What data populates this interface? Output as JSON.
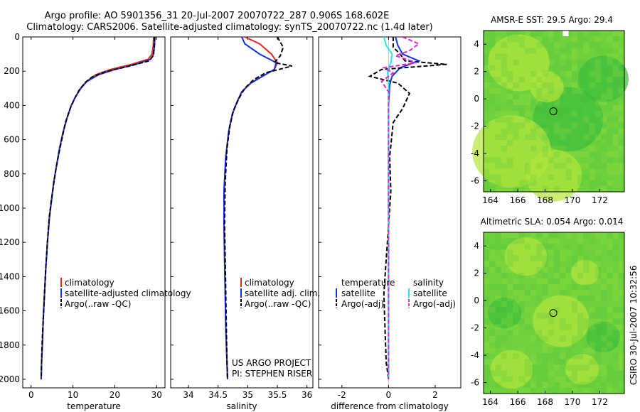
{
  "header": {
    "title_line1": "Argo profile: AO 5901356_31 20-Jul-2007 20070722_287 0.906S 168.602E",
    "title_line2": "Climatology: CARS2006. Satellite-adjusted climatology: synTS_20070722.nc (1.4d later)"
  },
  "side_label": "CSIRO 30-Jul-2007 10:32:56",
  "colors": {
    "climatology": "#e8281e",
    "satellite": "#1432e6",
    "argo": "#000000",
    "salinity_sat": "#28e6e6",
    "salinity_argo": "#e028d0",
    "map_bg": "#6fd23c",
    "map_light": "#b4e63c",
    "map_dark": "#3cbe3c"
  },
  "chart_data": [
    {
      "type": "line",
      "id": "temperature",
      "xlabel": "temperature",
      "ylabel": "",
      "xlim": [
        -2,
        32
      ],
      "ylim": [
        2050,
        0
      ],
      "xticks": [
        "0",
        "10",
        "20",
        "30"
      ],
      "xtick_values": [
        0,
        10,
        20,
        30
      ],
      "yticks": [
        "0",
        "200",
        "400",
        "600",
        "800",
        "1000",
        "1200",
        "1400",
        "1600",
        "1800",
        "2000"
      ],
      "ytick_values": [
        0,
        200,
        400,
        600,
        800,
        1000,
        1200,
        1400,
        1600,
        1800,
        2000
      ],
      "legend": [
        "climatology",
        "satellite-adjusted climatology",
        "Argo(..raw -QC)"
      ],
      "series": [
        {
          "name": "climatology",
          "color_key": "climatology",
          "dash": false,
          "points": [
            [
              29.3,
              0
            ],
            [
              29.2,
              50
            ],
            [
              28.9,
              100
            ],
            [
              28,
              130
            ],
            [
              24,
              160
            ],
            [
              19,
              190
            ],
            [
              15.5,
              220
            ],
            [
              13.2,
              260
            ],
            [
              11.8,
              300
            ],
            [
              10.6,
              350
            ],
            [
              9.6,
              400
            ],
            [
              8.5,
              480
            ],
            [
              7.6,
              560
            ],
            [
              6.8,
              650
            ],
            [
              6.1,
              750
            ],
            [
              5.4,
              850
            ],
            [
              4.9,
              950
            ],
            [
              4.4,
              1050
            ],
            [
              3.9,
              1200
            ],
            [
              3.5,
              1350
            ],
            [
              3.2,
              1500
            ],
            [
              2.9,
              1650
            ],
            [
              2.7,
              1800
            ],
            [
              2.5,
              1900
            ],
            [
              2.4,
              2000
            ]
          ]
        },
        {
          "name": "satellite-adjusted climatology",
          "color_key": "satellite",
          "dash": false,
          "points": [
            [
              29.6,
              0
            ],
            [
              29.5,
              50
            ],
            [
              29.3,
              100
            ],
            [
              28.6,
              130
            ],
            [
              25,
              160
            ],
            [
              20,
              190
            ],
            [
              16.2,
              220
            ],
            [
              13.3,
              260
            ],
            [
              11.9,
              300
            ],
            [
              10.6,
              350
            ],
            [
              9.6,
              400
            ],
            [
              8.5,
              480
            ],
            [
              7.6,
              560
            ],
            [
              6.8,
              650
            ],
            [
              6.1,
              750
            ],
            [
              5.4,
              850
            ],
            [
              4.9,
              950
            ],
            [
              4.4,
              1050
            ],
            [
              3.9,
              1200
            ],
            [
              3.5,
              1350
            ],
            [
              3.2,
              1500
            ],
            [
              2.9,
              1650
            ],
            [
              2.7,
              1800
            ],
            [
              2.5,
              1900
            ],
            [
              2.4,
              2000
            ]
          ]
        },
        {
          "name": "Argo(..raw -QC)",
          "color_key": "argo",
          "dash": true,
          "points": [
            [
              29.5,
              0
            ],
            [
              29.4,
              60
            ],
            [
              29.2,
              110
            ],
            [
              28.2,
              140
            ],
            [
              23.5,
              170
            ],
            [
              17.5,
              205
            ],
            [
              14.5,
              235
            ],
            [
              13,
              265
            ],
            [
              11.5,
              310
            ],
            [
              10.4,
              360
            ],
            [
              9.3,
              420
            ],
            [
              8.2,
              500
            ],
            [
              7.5,
              580
            ],
            [
              6.8,
              660
            ],
            [
              6,
              760
            ],
            [
              5.4,
              860
            ],
            [
              4.8,
              960
            ],
            [
              4.3,
              1060
            ],
            [
              3.9,
              1200
            ],
            [
              3.5,
              1350
            ],
            [
              3.2,
              1500
            ],
            [
              2.9,
              1650
            ],
            [
              2.6,
              1800
            ],
            [
              2.5,
              1900
            ],
            [
              2.4,
              2000
            ]
          ]
        }
      ]
    },
    {
      "type": "line",
      "id": "salinity",
      "xlabel": "salinity",
      "xlim": [
        33.7,
        36.1
      ],
      "ylim": [
        2050,
        0
      ],
      "xticks": [
        "34",
        "34.5",
        "35",
        "35.5",
        "36"
      ],
      "xtick_values": [
        34,
        34.5,
        35,
        35.5,
        36
      ],
      "legend": [
        "climatology",
        "satellite adj. clim.",
        "Argo(..raw -QC)"
      ],
      "annotation": [
        "US ARGO PROJECT",
        "PI: STEPHEN RISER"
      ],
      "series": [
        {
          "name": "climatology",
          "color_key": "climatology",
          "dash": false,
          "points": [
            [
              34.95,
              0
            ],
            [
              35.2,
              40
            ],
            [
              35.4,
              100
            ],
            [
              35.5,
              150
            ],
            [
              35.45,
              190
            ],
            [
              35.25,
              230
            ],
            [
              35.05,
              270
            ],
            [
              34.9,
              320
            ],
            [
              34.82,
              380
            ],
            [
              34.74,
              450
            ],
            [
              34.68,
              550
            ],
            [
              34.63,
              700
            ],
            [
              34.6,
              900
            ],
            [
              34.6,
              1100
            ],
            [
              34.61,
              1300
            ],
            [
              34.62,
              1500
            ],
            [
              34.63,
              1700
            ],
            [
              34.65,
              1900
            ],
            [
              34.66,
              2000
            ]
          ]
        },
        {
          "name": "satellite adj. clim.",
          "color_key": "satellite",
          "dash": false,
          "points": [
            [
              34.9,
              0
            ],
            [
              34.95,
              40
            ],
            [
              35.2,
              100
            ],
            [
              35.48,
              150
            ],
            [
              35.45,
              190
            ],
            [
              35.25,
              230
            ],
            [
              35.05,
              270
            ],
            [
              34.9,
              320
            ],
            [
              34.82,
              380
            ],
            [
              34.74,
              450
            ],
            [
              34.68,
              550
            ],
            [
              34.63,
              700
            ],
            [
              34.6,
              900
            ],
            [
              34.6,
              1100
            ],
            [
              34.61,
              1300
            ],
            [
              34.62,
              1500
            ],
            [
              34.63,
              1700
            ],
            [
              34.65,
              1900
            ],
            [
              34.66,
              2000
            ]
          ]
        },
        {
          "name": "Argo(..raw -QC)",
          "color_key": "argo",
          "dash": true,
          "points": [
            [
              35.5,
              0
            ],
            [
              35.6,
              60
            ],
            [
              35.55,
              110
            ],
            [
              35.45,
              150
            ],
            [
              35.75,
              170
            ],
            [
              35.3,
              210
            ],
            [
              35.1,
              250
            ],
            [
              34.95,
              300
            ],
            [
              34.85,
              360
            ],
            [
              34.76,
              430
            ],
            [
              34.7,
              520
            ],
            [
              34.65,
              650
            ],
            [
              34.62,
              850
            ],
            [
              34.61,
              1100
            ],
            [
              34.62,
              1300
            ],
            [
              34.63,
              1500
            ],
            [
              34.64,
              1700
            ],
            [
              34.65,
              1900
            ],
            [
              34.66,
              2000
            ]
          ]
        }
      ]
    },
    {
      "type": "line",
      "id": "difference",
      "xlabel": "difference from climatology",
      "xlim": [
        -3,
        3.1
      ],
      "ylim": [
        2050,
        0
      ],
      "xticks": [
        "-2",
        "0",
        "2"
      ],
      "xtick_values": [
        -2,
        0,
        2
      ],
      "legend_temperature": {
        "heading": "temperature",
        "items": [
          "satellite",
          "Argo(-adj)"
        ]
      },
      "legend_salinity": {
        "heading": "salinity",
        "items": [
          "satellite",
          "Argo(-adj)"
        ]
      },
      "series": [
        {
          "name": "temperature satellite",
          "color_key": "satellite",
          "dash": false,
          "points": [
            [
              0.3,
              0
            ],
            [
              0.4,
              50
            ],
            [
              0.6,
              100
            ],
            [
              1.3,
              140
            ],
            [
              0.5,
              180
            ],
            [
              0.15,
              230
            ],
            [
              0.05,
              280
            ],
            [
              0,
              400
            ],
            [
              0,
              800
            ],
            [
              0,
              1200
            ],
            [
              0,
              1600
            ],
            [
              0,
              2000
            ]
          ]
        },
        {
          "name": "temperature Argo(-adj)",
          "color_key": "argo",
          "dash": true,
          "points": [
            [
              0.2,
              0
            ],
            [
              0.2,
              60
            ],
            [
              0.5,
              100
            ],
            [
              0.7,
              140
            ],
            [
              2.5,
              160
            ],
            [
              -0.3,
              190
            ],
            [
              -0.8,
              230
            ],
            [
              0.4,
              270
            ],
            [
              0.9,
              330
            ],
            [
              0.6,
              420
            ],
            [
              0.2,
              500
            ],
            [
              0.05,
              700
            ],
            [
              0.1,
              900
            ],
            [
              0,
              1100
            ],
            [
              -0.1,
              1300
            ],
            [
              -0.2,
              1500
            ],
            [
              -0.15,
              1700
            ],
            [
              -0.1,
              1900
            ],
            [
              0,
              2000
            ]
          ]
        },
        {
          "name": "salinity satellite",
          "color_key": "salinity_sat",
          "dash": false,
          "points": [
            [
              -0.2,
              0
            ],
            [
              -0.1,
              50
            ],
            [
              0.15,
              100
            ],
            [
              0.1,
              150
            ],
            [
              -0.05,
              200
            ],
            [
              0,
              260
            ],
            [
              0,
              400
            ],
            [
              0,
              800
            ],
            [
              0,
              1200
            ],
            [
              0,
              1600
            ],
            [
              0,
              2000
            ]
          ]
        },
        {
          "name": "salinity Argo(-adj)",
          "color_key": "salinity_argo",
          "dash": true,
          "points": [
            [
              0.6,
              0
            ],
            [
              1.3,
              40
            ],
            [
              0.9,
              80
            ],
            [
              0.3,
              110
            ],
            [
              1.2,
              150
            ],
            [
              -0.2,
              180
            ],
            [
              0.2,
              210
            ],
            [
              -0.3,
              260
            ],
            [
              0,
              320
            ],
            [
              0,
              500
            ],
            [
              0,
              800
            ],
            [
              0,
              1200
            ],
            [
              0,
              1600
            ],
            [
              0,
              2000
            ]
          ]
        }
      ]
    },
    {
      "type": "heatmap",
      "id": "sst_map",
      "title": "AMSR-E SST: 29.5 Argo: 29.4",
      "xlim": [
        163.5,
        173.8
      ],
      "ylim": [
        -6.8,
        5
      ],
      "xticks": [
        "164",
        "166",
        "168",
        "170",
        "172"
      ],
      "xtick_values": [
        164,
        166,
        168,
        170,
        172
      ],
      "yticks": [
        "4",
        "2",
        "0",
        "-2",
        "-4",
        "-6"
      ],
      "ytick_values": [
        4,
        2,
        0,
        -2,
        -4,
        -6
      ],
      "marker": [
        168.602,
        -0.906
      ]
    },
    {
      "type": "heatmap",
      "id": "sla_map",
      "title": "Altimetric SLA: 0.054 Argo: 0.014",
      "xlim": [
        163.5,
        173.8
      ],
      "ylim": [
        -6.8,
        5
      ],
      "xticks": [
        "164",
        "166",
        "168",
        "170",
        "172"
      ],
      "xtick_values": [
        164,
        166,
        168,
        170,
        172
      ],
      "yticks": [
        "4",
        "2",
        "0",
        "-2",
        "-4",
        "-6"
      ],
      "ytick_values": [
        4,
        2,
        0,
        -2,
        -4,
        -6
      ],
      "marker": [
        168.602,
        -0.906
      ]
    }
  ]
}
